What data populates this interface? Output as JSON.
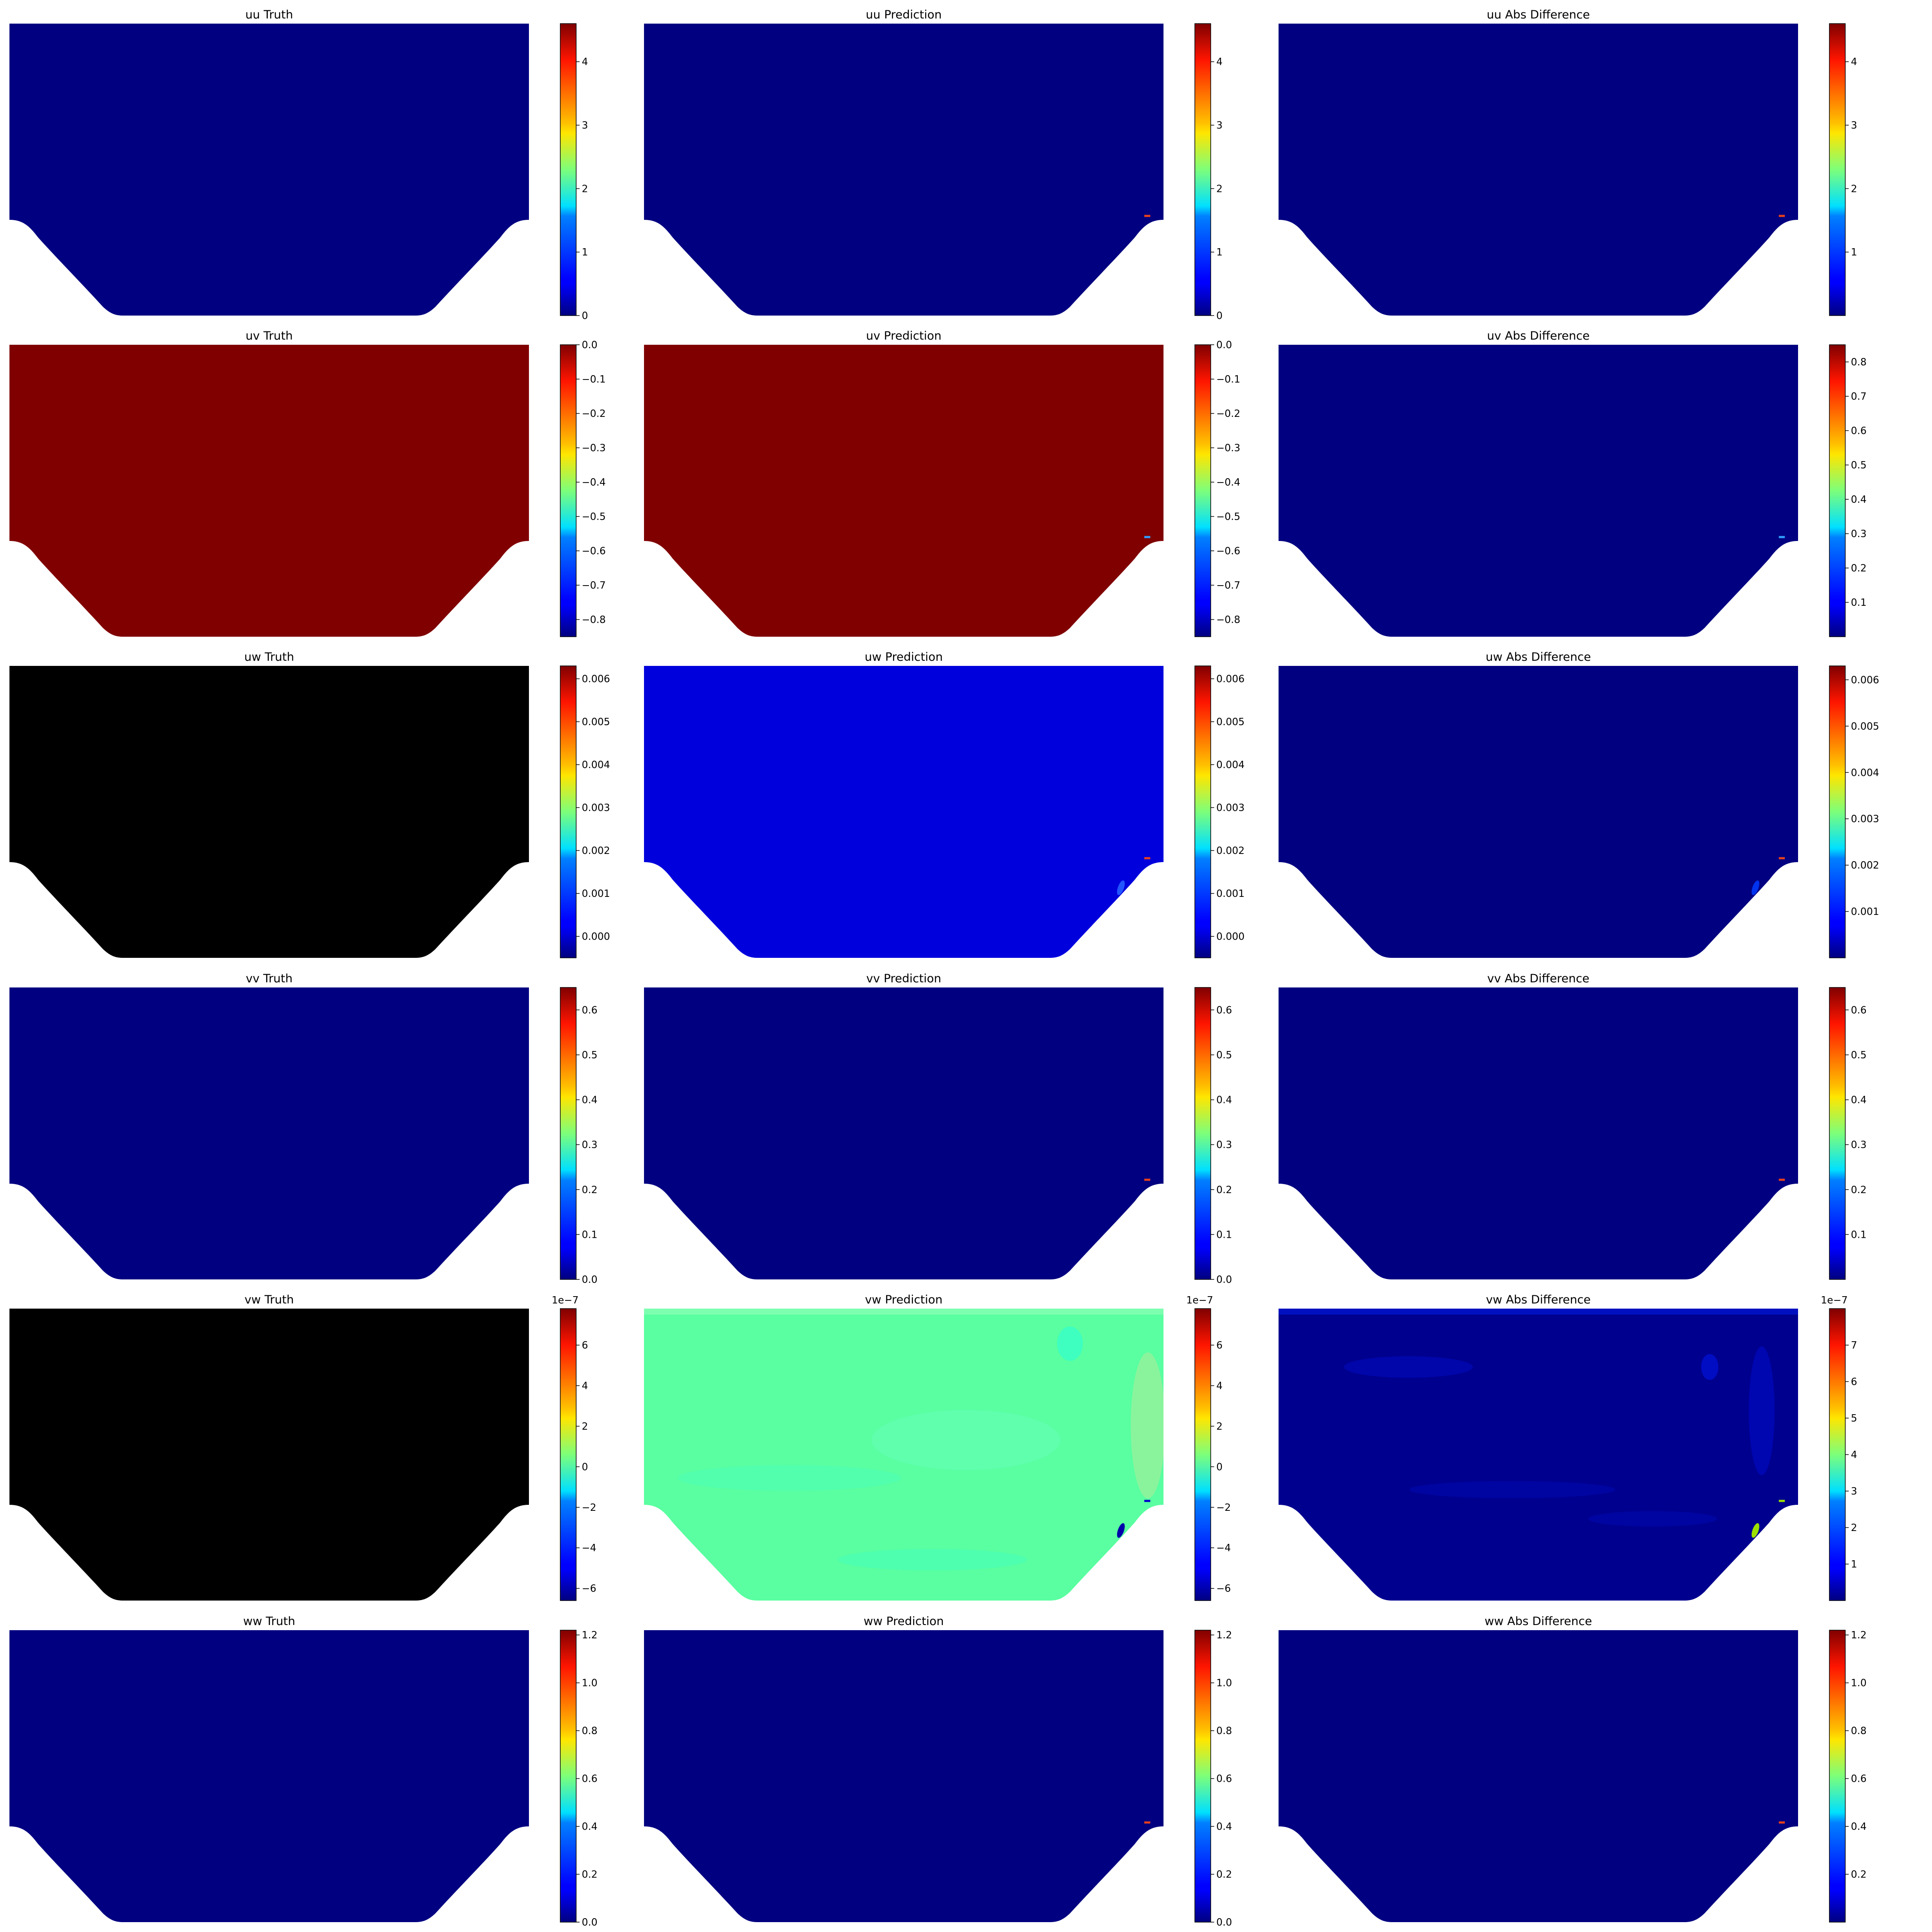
{
  "chart_data": [
    {
      "type": "heatmap",
      "title": "uu Truth",
      "fill": "#000080",
      "colorbar": {
        "ticks": [
          "0",
          "1",
          "2",
          "3",
          "4"
        ],
        "tick_values": [
          0,
          1,
          2,
          3,
          4
        ],
        "range": [
          0,
          4.6
        ],
        "exponent": ""
      },
      "hotspot": true,
      "hotspot_color": "#000080"
    },
    {
      "type": "heatmap",
      "title": "uu Prediction",
      "fill": "#000080",
      "colorbar": {
        "ticks": [
          "0",
          "1",
          "2",
          "3",
          "4"
        ],
        "tick_values": [
          0,
          1,
          2,
          3,
          4
        ],
        "range": [
          0,
          4.6
        ],
        "exponent": ""
      },
      "hotspot": true,
      "hotspot_color": "#e8401c"
    },
    {
      "type": "heatmap",
      "title": "uu Abs Difference",
      "fill": "#000080",
      "colorbar": {
        "ticks": [
          "1",
          "2",
          "3",
          "4"
        ],
        "tick_values": [
          1,
          2,
          3,
          4
        ],
        "range": [
          0,
          4.6
        ],
        "exponent": ""
      },
      "hotspot": true,
      "hotspot_color": "#e8401c"
    },
    {
      "type": "heatmap",
      "title": "uv Truth",
      "fill": "#800000",
      "colorbar": {
        "ticks": [
          "0.0",
          "−0.1",
          "−0.2",
          "−0.3",
          "−0.4",
          "−0.5",
          "−0.6",
          "−0.7",
          "−0.8"
        ],
        "tick_values": [
          0,
          -0.1,
          -0.2,
          -0.3,
          -0.4,
          -0.5,
          -0.6,
          -0.7,
          -0.8
        ],
        "range": [
          -0.85,
          0.0
        ],
        "exponent": ""
      },
      "hotspot": false,
      "hotspot_color": "#800000"
    },
    {
      "type": "heatmap",
      "title": "uv Prediction",
      "fill": "#800000",
      "colorbar": {
        "ticks": [
          "0.0",
          "−0.1",
          "−0.2",
          "−0.3",
          "−0.4",
          "−0.5",
          "−0.6",
          "−0.7",
          "−0.8"
        ],
        "tick_values": [
          0,
          -0.1,
          -0.2,
          -0.3,
          -0.4,
          -0.5,
          -0.6,
          -0.7,
          -0.8
        ],
        "range": [
          -0.85,
          0.0
        ],
        "exponent": ""
      },
      "hotspot": true,
      "hotspot_color": "#30a0ff"
    },
    {
      "type": "heatmap",
      "title": "uv Abs Difference",
      "fill": "#000080",
      "colorbar": {
        "ticks": [
          "0.1",
          "0.2",
          "0.3",
          "0.4",
          "0.5",
          "0.6",
          "0.7",
          "0.8"
        ],
        "tick_values": [
          0.1,
          0.2,
          0.3,
          0.4,
          0.5,
          0.6,
          0.7,
          0.8
        ],
        "range": [
          0,
          0.85
        ],
        "exponent": ""
      },
      "hotspot": true,
      "hotspot_color": "#30a0ff"
    },
    {
      "type": "heatmap",
      "title": "uw Truth",
      "fill": "#000000",
      "colorbar": {
        "ticks": [
          "0.000",
          "0.001",
          "0.002",
          "0.003",
          "0.004",
          "0.005",
          "0.006"
        ],
        "tick_values": [
          0,
          0.001,
          0.002,
          0.003,
          0.004,
          0.005,
          0.006
        ],
        "range": [
          -0.0005,
          0.0063
        ],
        "exponent": ""
      },
      "hotspot": false,
      "hotspot_color": "#000000"
    },
    {
      "type": "heatmap",
      "title": "uw Prediction",
      "fill": "#0000dd",
      "colorbar": {
        "ticks": [
          "0.000",
          "0.001",
          "0.002",
          "0.003",
          "0.004",
          "0.005",
          "0.006"
        ],
        "tick_values": [
          0,
          0.001,
          0.002,
          0.003,
          0.004,
          0.005,
          0.006
        ],
        "range": [
          -0.0005,
          0.0063
        ],
        "exponent": ""
      },
      "hotspot": true,
      "hotspot_color": "#e8401c"
    },
    {
      "type": "heatmap",
      "title": "uw Abs Difference",
      "fill": "#000080",
      "colorbar": {
        "ticks": [
          "0.001",
          "0.002",
          "0.003",
          "0.004",
          "0.005",
          "0.006"
        ],
        "tick_values": [
          0.001,
          0.002,
          0.003,
          0.004,
          0.005,
          0.006
        ],
        "range": [
          0,
          0.0063
        ],
        "exponent": ""
      },
      "hotspot": true,
      "hotspot_color": "#e8401c"
    },
    {
      "type": "heatmap",
      "title": "vv Truth",
      "fill": "#000080",
      "colorbar": {
        "ticks": [
          "0.0",
          "0.1",
          "0.2",
          "0.3",
          "0.4",
          "0.5",
          "0.6"
        ],
        "tick_values": [
          0,
          0.1,
          0.2,
          0.3,
          0.4,
          0.5,
          0.6
        ],
        "range": [
          0,
          0.65
        ],
        "exponent": ""
      },
      "hotspot": false,
      "hotspot_color": "#000080"
    },
    {
      "type": "heatmap",
      "title": "vv Prediction",
      "fill": "#000080",
      "colorbar": {
        "ticks": [
          "0.0",
          "0.1",
          "0.2",
          "0.3",
          "0.4",
          "0.5",
          "0.6"
        ],
        "tick_values": [
          0,
          0.1,
          0.2,
          0.3,
          0.4,
          0.5,
          0.6
        ],
        "range": [
          0,
          0.65
        ],
        "exponent": ""
      },
      "hotspot": true,
      "hotspot_color": "#e8401c"
    },
    {
      "type": "heatmap",
      "title": "vv Abs Difference",
      "fill": "#000080",
      "colorbar": {
        "ticks": [
          "0.1",
          "0.2",
          "0.3",
          "0.4",
          "0.5",
          "0.6"
        ],
        "tick_values": [
          0.1,
          0.2,
          0.3,
          0.4,
          0.5,
          0.6
        ],
        "range": [
          0,
          0.65
        ],
        "exponent": ""
      },
      "hotspot": true,
      "hotspot_color": "#e8401c"
    },
    {
      "type": "heatmap",
      "title": "vw Truth",
      "fill": "#000000",
      "colorbar": {
        "ticks": [
          "−6",
          "−4",
          "−2",
          "0",
          "2",
          "4",
          "6"
        ],
        "tick_values": [
          -6,
          -4,
          -2,
          0,
          2,
          4,
          6
        ],
        "range": [
          -6.6,
          7.8
        ],
        "exponent": "1e−7"
      },
      "hotspot": false,
      "hotspot_color": "#000000"
    },
    {
      "type": "heatmap",
      "title": "vw Prediction",
      "fill": "#59ffa0",
      "colorbar": {
        "ticks": [
          "−6",
          "−4",
          "−2",
          "0",
          "2",
          "4",
          "6"
        ],
        "tick_values": [
          -6,
          -4,
          -2,
          0,
          2,
          4,
          6
        ],
        "range": [
          -6.6,
          7.8
        ],
        "exponent": "1e−7"
      },
      "hotspot": true,
      "hotspot_color": "#0000cc"
    },
    {
      "type": "heatmap",
      "title": "vw Abs Difference",
      "fill": "#00008f",
      "colorbar": {
        "ticks": [
          "1",
          "2",
          "3",
          "4",
          "5",
          "6",
          "7"
        ],
        "tick_values": [
          1,
          2,
          3,
          4,
          5,
          6,
          7
        ],
        "range": [
          0,
          8
        ],
        "exponent": "1e−7"
      },
      "hotspot": true,
      "hotspot_color": "#9be000"
    },
    {
      "type": "heatmap",
      "title": "ww Truth",
      "fill": "#000080",
      "colorbar": {
        "ticks": [
          "0.0",
          "0.2",
          "0.4",
          "0.6",
          "0.8",
          "1.0",
          "1.2"
        ],
        "tick_values": [
          0,
          0.2,
          0.4,
          0.6,
          0.8,
          1.0,
          1.2
        ],
        "range": [
          0,
          1.22
        ],
        "exponent": ""
      },
      "hotspot": false,
      "hotspot_color": "#000080"
    },
    {
      "type": "heatmap",
      "title": "ww Prediction",
      "fill": "#000080",
      "colorbar": {
        "ticks": [
          "0.0",
          "0.2",
          "0.4",
          "0.6",
          "0.8",
          "1.0",
          "1.2"
        ],
        "tick_values": [
          0,
          0.2,
          0.4,
          0.6,
          0.8,
          1.0,
          1.2
        ],
        "range": [
          0,
          1.22
        ],
        "exponent": ""
      },
      "hotspot": true,
      "hotspot_color": "#e8401c"
    },
    {
      "type": "heatmap",
      "title": "ww Abs Difference",
      "fill": "#000080",
      "colorbar": {
        "ticks": [
          "0.2",
          "0.4",
          "0.6",
          "0.8",
          "1.0",
          "1.2"
        ],
        "tick_values": [
          0.2,
          0.4,
          0.6,
          0.8,
          1.0,
          1.2
        ],
        "range": [
          0,
          1.22
        ],
        "exponent": ""
      },
      "hotspot": true,
      "hotspot_color": "#e8401c"
    }
  ],
  "colormap": "jet"
}
